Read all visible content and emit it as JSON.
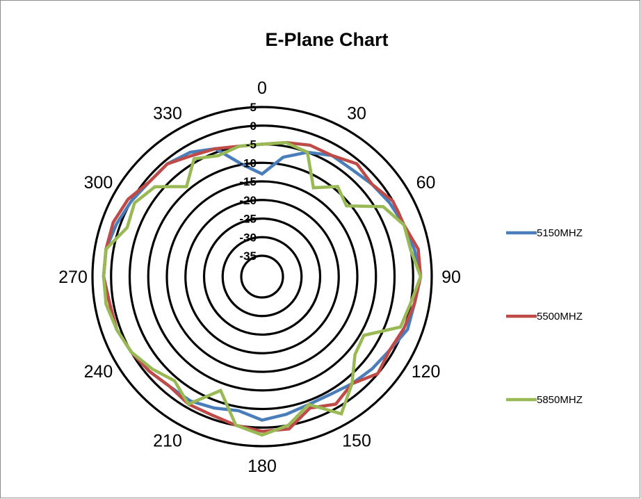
{
  "chart_data": {
    "type": "radar",
    "title": "E-Plane Chart",
    "angles": [
      0,
      10,
      20,
      30,
      40,
      50,
      60,
      70,
      80,
      90,
      100,
      110,
      120,
      130,
      140,
      150,
      160,
      170,
      180,
      190,
      200,
      210,
      220,
      230,
      240,
      250,
      260,
      270,
      280,
      290,
      300,
      310,
      320,
      330,
      340,
      350
    ],
    "angle_labels": [
      "0",
      "30",
      "60",
      "90",
      "120",
      "150",
      "180",
      "210",
      "240",
      "270",
      "300",
      "330"
    ],
    "radial_labels": [
      "5",
      "0",
      "-5",
      "-10",
      "-15",
      "-20",
      "-25",
      "-30",
      "-35"
    ],
    "rlim": [
      -35,
      5
    ],
    "ring_step": 5,
    "legend_position": "right",
    "series": [
      {
        "name": "5150MHZ",
        "color": "#4a7ebb",
        "values": [
          -13,
          -8,
          -5,
          -3,
          -3,
          -2,
          -1,
          0,
          1,
          2,
          1,
          1,
          -1,
          -2,
          -3,
          -4,
          -4,
          -3,
          -2,
          -4,
          -3,
          -2,
          -2,
          -1,
          0,
          1,
          1,
          2,
          2,
          1,
          0,
          -1,
          -1,
          -2,
          -4,
          -10
        ]
      },
      {
        "name": "5500MHZ",
        "color": "#be4b48",
        "values": [
          -5,
          -4,
          -3,
          -3,
          -1,
          -2,
          0,
          0,
          2,
          2,
          1,
          0,
          -1,
          0,
          -3,
          -1,
          -3,
          1,
          1,
          0,
          -1,
          -1,
          -2,
          -1,
          0,
          1,
          1,
          2,
          2,
          2,
          1,
          -1,
          -1,
          -3,
          -4,
          -5
        ]
      },
      {
        "name": "5850MHZ",
        "color": "#98b954",
        "values": [
          -5,
          -4,
          -5,
          -13,
          -9,
          -11,
          -3,
          0,
          0,
          2,
          0,
          -1,
          -9,
          -8,
          -3,
          2,
          -4,
          0,
          2,
          0,
          -8,
          -1,
          -4,
          -2,
          0,
          1,
          2,
          2,
          2,
          -2,
          -1,
          -3,
          -9,
          -4,
          -6,
          -5
        ]
      }
    ]
  }
}
